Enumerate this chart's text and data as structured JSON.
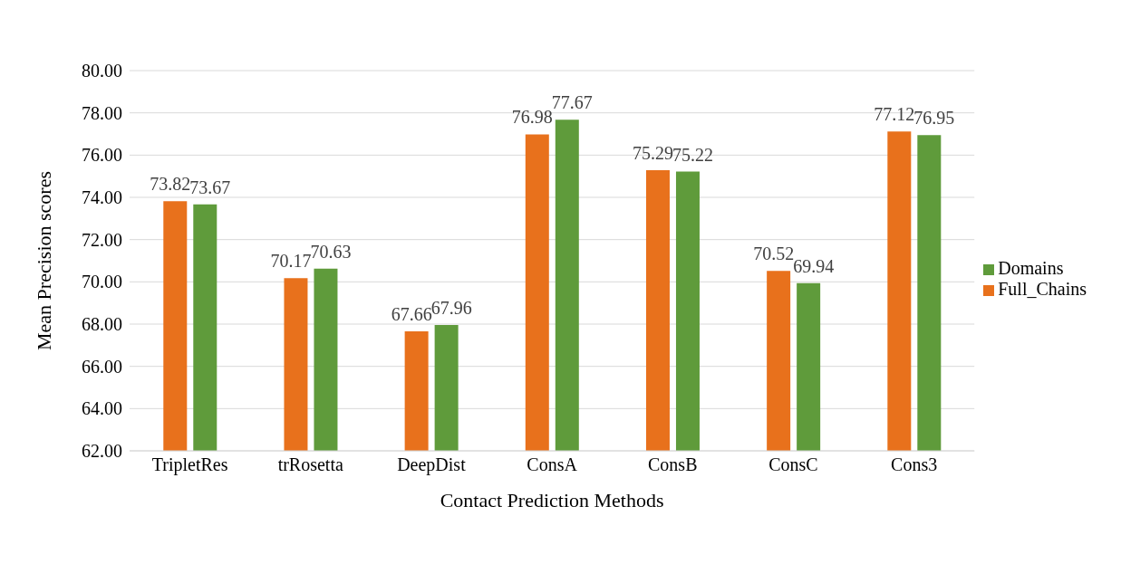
{
  "chart_data": {
    "type": "bar",
    "xlabel": "Contact Prediction Methods",
    "ylabel": "Mean Precision scores",
    "categories": [
      "TripletRes",
      "trRosetta",
      "DeepDist",
      "ConsA",
      "ConsB",
      "ConsC",
      "Cons3"
    ],
    "series": [
      {
        "name": "Full_Chains",
        "color": "#e8711c",
        "values": [
          73.82,
          70.17,
          67.66,
          76.98,
          75.29,
          70.52,
          77.12
        ]
      },
      {
        "name": "Domains",
        "color": "#5f9b3b",
        "values": [
          73.67,
          70.63,
          67.96,
          77.67,
          75.22,
          69.94,
          76.95
        ]
      }
    ],
    "ylim": [
      62,
      80
    ],
    "yticks": [
      {
        "value": 62,
        "label": "62.00"
      },
      {
        "value": 64,
        "label": "64.00"
      },
      {
        "value": 66,
        "label": "66.00"
      },
      {
        "value": 68,
        "label": "68.00"
      },
      {
        "value": 70,
        "label": "70.00"
      },
      {
        "value": 72,
        "label": "72.00"
      },
      {
        "value": 74,
        "label": "74.00"
      },
      {
        "value": 76,
        "label": "76.00"
      },
      {
        "value": 78,
        "label": "78.00"
      },
      {
        "value": 80,
        "label": "80.00"
      }
    ],
    "grid": "y",
    "legend": "right",
    "data_labels": true
  }
}
